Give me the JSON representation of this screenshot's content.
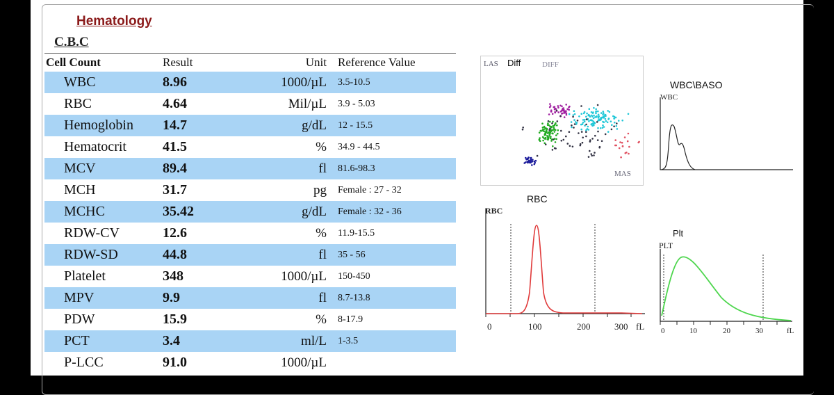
{
  "section_title": "Hematology",
  "table_title": "C.B.C",
  "columns": [
    "Cell Count",
    "Result",
    "Unit",
    "Reference Value"
  ],
  "rows": [
    {
      "name": "WBC",
      "result": "8.96",
      "unit": "1000/µL",
      "ref": "3.5-10.5"
    },
    {
      "name": "RBC",
      "result": "4.64",
      "unit": "Mil/µL",
      "ref": "3.9 - 5.03"
    },
    {
      "name": "Hemoglobin",
      "result": "14.7",
      "unit": "g/dL",
      "ref": "12 - 15.5"
    },
    {
      "name": "Hematocrit",
      "result": "41.5",
      "unit": "%",
      "ref": "34.9 - 44.5"
    },
    {
      "name": "MCV",
      "result": "89.4",
      "unit": "fl",
      "ref": "81.6-98.3"
    },
    {
      "name": "MCH",
      "result": "31.7",
      "unit": "pg",
      "ref": "Female : 27 - 32"
    },
    {
      "name": "MCHC",
      "result": "35.42",
      "unit": "g/dL",
      "ref": "Female : 32 - 36"
    },
    {
      "name": "RDW-CV",
      "result": "12.6",
      "unit": "%",
      "ref": "11.9-15.5"
    },
    {
      "name": "RDW-SD",
      "result": "44.8",
      "unit": "fl",
      "ref": "35 - 56"
    },
    {
      "name": "Platelet",
      "result": "348",
      "unit": "1000/µL",
      "ref": "150-450"
    },
    {
      "name": "MPV",
      "result": "9.9",
      "unit": "fl",
      "ref": "8.7-13.8"
    },
    {
      "name": "PDW",
      "result": "15.9",
      "unit": "%",
      "ref": "8-17.9"
    },
    {
      "name": "PCT",
      "result": "3.4",
      "unit": "ml/L",
      "ref": "1-3.5"
    },
    {
      "name": "P-LCC",
      "result": "91.0",
      "unit": "1000/µL",
      "ref": ""
    }
  ],
  "plots": {
    "diff": {
      "title": "Diff",
      "corner_label": "LAS",
      "watermark": "DIFF",
      "x_label": "MAS"
    },
    "wbc_baso": {
      "title": "WBC\\BASO",
      "axis_label": "WBC"
    },
    "rbc": {
      "title": "RBC",
      "axis_label": "RBC",
      "ticks": [
        "0",
        "100",
        "200",
        "300"
      ],
      "unit": "fL"
    },
    "plt": {
      "title": "Plt",
      "axis_label": "PLT",
      "ticks": [
        "0",
        "10",
        "20",
        "30"
      ],
      "unit": "fL"
    }
  },
  "colors": {
    "band": "#a9d4f5",
    "title": "#8b1a1a",
    "rbc_curve": "#e03a3a",
    "plt_curve": "#4ed64e"
  }
}
